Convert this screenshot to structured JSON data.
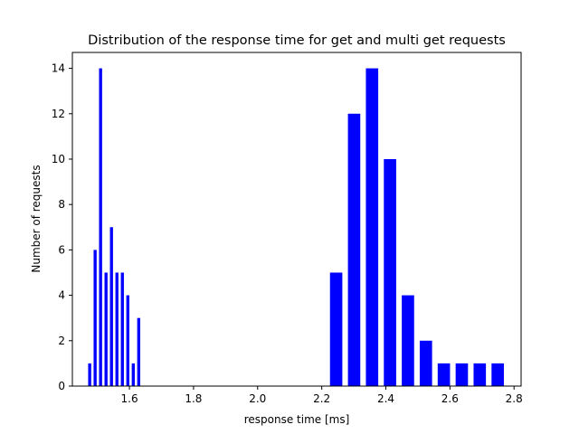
{
  "chart_data": {
    "type": "bar",
    "title": "Distribution of the response time for get and multi get requests",
    "xlabel": "response time [ms]",
    "ylabel": "Number of requests",
    "xlim": [
      1.422,
      2.822
    ],
    "ylim": [
      0,
      14.7
    ],
    "xticks": [
      1.6,
      1.8,
      2.0,
      2.2,
      2.4,
      2.6,
      2.8
    ],
    "xtick_labels": [
      "1.6",
      "1.8",
      "2.0",
      "2.2",
      "2.4",
      "2.6",
      "2.8"
    ],
    "yticks": [
      0,
      2,
      4,
      6,
      8,
      10,
      12,
      14
    ],
    "ytick_labels": [
      "0",
      "2",
      "4",
      "6",
      "8",
      "10",
      "12",
      "14"
    ],
    "grid": false,
    "bar_color": "#0000ff",
    "series": [
      {
        "bin_width": 0.0095,
        "x": [
          1.476,
          1.493,
          1.51,
          1.527,
          1.544,
          1.561,
          1.578,
          1.595,
          1.612,
          1.629
        ],
        "values": [
          1,
          6,
          14,
          5,
          7,
          5,
          5,
          4,
          1,
          3
        ]
      },
      {
        "bin_width": 0.0385,
        "x": [
          2.245,
          2.301,
          2.357,
          2.413,
          2.469,
          2.525,
          2.581,
          2.637,
          2.693,
          2.749
        ],
        "values": [
          5,
          12,
          14,
          10,
          4,
          2,
          1,
          1,
          1,
          1
        ]
      }
    ]
  }
}
